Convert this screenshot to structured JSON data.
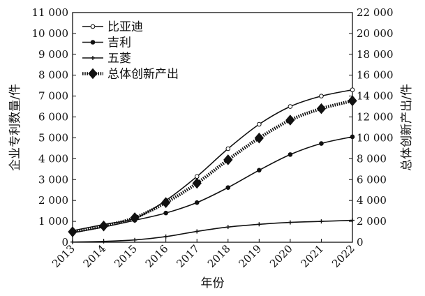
{
  "chart_data": {
    "type": "line",
    "title": "",
    "x": [
      "2013",
      "2014",
      "2015",
      "2016",
      "2017",
      "2018",
      "2019",
      "2020",
      "2021",
      "2022"
    ],
    "xlabel": "年份",
    "ylabel_left": "企业专利数量/件",
    "ylabel_right": "总体创新产出/件",
    "ylim_left": [
      0,
      11000
    ],
    "ylim_right": [
      0,
      22000
    ],
    "yticks_left": [
      "0",
      "1 000",
      "2 000",
      "3 000",
      "4 000",
      "5 000",
      "6 000",
      "7 000",
      "8 000",
      "9 000",
      "10 000",
      "11 000"
    ],
    "yticks_right": [
      "0",
      "2 000",
      "4 000",
      "6 000",
      "8 000",
      "10 000",
      "12 000",
      "14 000",
      "16 000",
      "18 000",
      "20 000",
      "22 000"
    ],
    "legend_position": "top-left",
    "grid": false,
    "series": [
      {
        "name": "比亚迪",
        "axis": "left",
        "marker": "open-circle",
        "style": "solid",
        "values": [
          550,
          850,
          1150,
          2000,
          3150,
          4480,
          5650,
          6500,
          7000,
          7300
        ]
      },
      {
        "name": "吉利",
        "axis": "left",
        "marker": "filled-circle",
        "style": "solid",
        "values": [
          450,
          730,
          1050,
          1400,
          1900,
          2620,
          3450,
          4200,
          4730,
          5050
        ]
      },
      {
        "name": "五菱",
        "axis": "left",
        "marker": "plus",
        "style": "solid",
        "values": [
          10,
          40,
          110,
          270,
          520,
          730,
          860,
          950,
          1000,
          1050
        ]
      },
      {
        "name": "总体创新产出",
        "axis": "right",
        "marker": "filled-diamond",
        "style": "dotted",
        "values": [
          1000,
          1560,
          2350,
          3800,
          5650,
          7900,
          9980,
          11700,
          12800,
          13550
        ]
      }
    ]
  }
}
